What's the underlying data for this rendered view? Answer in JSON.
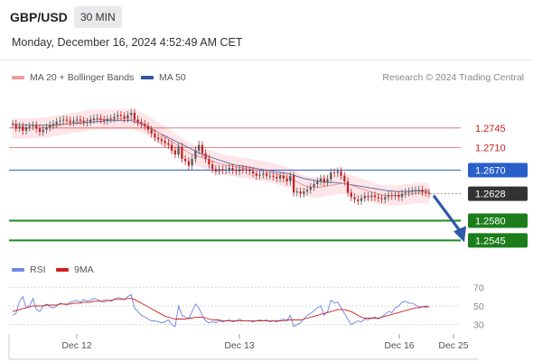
{
  "header": {
    "symbol": "GBP/USD",
    "timeframe": "30 MIN",
    "datetime": "Monday, December 16, 2024 4:52:49 AM CET"
  },
  "legend": {
    "ma20_label": "MA 20 + Bollinger Bands",
    "ma50_label": "MA 50",
    "copyright": "Research © 2024 Trading Central",
    "rsi_label": "RSI",
    "ma9_label": "9MA"
  },
  "colors": {
    "resistance": "#e06060",
    "pivot": "#2f62c4",
    "support": "#1e8a1e",
    "price": "#333333",
    "candle_up": "#555555",
    "candle_down": "#c42020",
    "ma20": "#e79090",
    "ma50": "#5a6aa0",
    "bb_fill": "#fde1e4",
    "rsi": "#6680e0",
    "rsi_ma": "#cc2020",
    "arrow": "#2d5aa8"
  },
  "chart_data": [
    {
      "type": "candlestick",
      "ylim": [
        1.2515,
        1.2825
      ],
      "levels": [
        {
          "value": 1.2745,
          "label": "1.2745",
          "kind": "resistance"
        },
        {
          "value": 1.271,
          "label": "1.2710",
          "kind": "resistance"
        },
        {
          "value": 1.267,
          "label": "1.2670",
          "kind": "pivot"
        },
        {
          "value": 1.2628,
          "label": "1.2628",
          "kind": "price"
        },
        {
          "value": 1.258,
          "label": "1.2580",
          "kind": "support"
        },
        {
          "value": 1.2545,
          "label": "1.2545",
          "kind": "support"
        }
      ],
      "x_ticks": [
        "Dec 12",
        "Dec 13",
        "Dec 16",
        "Dec 25"
      ],
      "close": [
        1.2752,
        1.2745,
        1.2748,
        1.274,
        1.2746,
        1.2748,
        1.275,
        1.2744,
        1.2738,
        1.2742,
        1.2746,
        1.275,
        1.2752,
        1.2756,
        1.2758,
        1.276,
        1.2758,
        1.2755,
        1.2758,
        1.276,
        1.2758,
        1.2755,
        1.2756,
        1.276,
        1.2762,
        1.2763,
        1.276,
        1.2758,
        1.2761,
        1.2762,
        1.2765,
        1.2768,
        1.2766,
        1.2762,
        1.2768,
        1.2772,
        1.276,
        1.2755,
        1.2752,
        1.2748,
        1.2742,
        1.2735,
        1.2728,
        1.2725,
        1.2722,
        1.2718,
        1.2715,
        1.2705,
        1.2698,
        1.2712,
        1.269,
        1.2686,
        1.2678,
        1.269,
        1.2705,
        1.2715,
        1.27,
        1.269,
        1.268,
        1.2672,
        1.2668,
        1.2672,
        1.267,
        1.2671,
        1.2674,
        1.267,
        1.2668,
        1.2672,
        1.2671,
        1.267,
        1.2668,
        1.2664,
        1.266,
        1.2662,
        1.2664,
        1.266,
        1.266,
        1.2658,
        1.2655,
        1.266,
        1.2655,
        1.265,
        1.266,
        1.263,
        1.2632,
        1.2628,
        1.2632,
        1.2635,
        1.264,
        1.2645,
        1.265,
        1.2655,
        1.2648,
        1.2654,
        1.2666,
        1.2665,
        1.2668,
        1.266,
        1.265,
        1.263,
        1.2622,
        1.2618,
        1.2615,
        1.262,
        1.2624,
        1.2622,
        1.2625,
        1.2622,
        1.262,
        1.2618,
        1.2622,
        1.2625,
        1.2624,
        1.2626,
        1.2622,
        1.2628,
        1.263,
        1.2632,
        1.2633,
        1.2634,
        1.2635,
        1.2631,
        1.263,
        1.2628
      ],
      "ma50": [
        1.2752,
        1.2751,
        1.2751,
        1.275,
        1.275,
        1.275,
        1.275,
        1.275,
        1.275,
        1.275,
        1.275,
        1.275,
        1.275,
        1.2751,
        1.2751,
        1.2752,
        1.2752,
        1.2752,
        1.2753,
        1.2753,
        1.2754,
        1.2754,
        1.2755,
        1.2755,
        1.2756,
        1.2756,
        1.2757,
        1.2757,
        1.2758,
        1.2758,
        1.2758,
        1.2758,
        1.2758,
        1.2758,
        1.2758,
        1.2758,
        1.2756,
        1.2754,
        1.2752,
        1.2749,
        1.2746,
        1.2743,
        1.274,
        1.2737,
        1.2734,
        1.2731,
        1.2728,
        1.2725,
        1.2722,
        1.2719,
        1.2716,
        1.2713,
        1.271,
        1.2707,
        1.2704,
        1.2701,
        1.2698,
        1.2696,
        1.2694,
        1.2692,
        1.269,
        1.2688,
        1.2686,
        1.2684,
        1.2682,
        1.268,
        1.2679,
        1.2678,
        1.2677,
        1.2676,
        1.2675,
        1.2674,
        1.2673,
        1.2672,
        1.2671,
        1.267,
        1.2669,
        1.2668,
        1.2667,
        1.2666,
        1.2665,
        1.2664,
        1.2663,
        1.2661,
        1.2659,
        1.2657,
        1.2655,
        1.2654,
        1.2653,
        1.2652,
        1.2651,
        1.265,
        1.2649,
        1.2648,
        1.2648,
        1.2648,
        1.2647,
        1.2647,
        1.2646,
        1.2645,
        1.2644,
        1.2643,
        1.2642,
        1.2641,
        1.264,
        1.2639,
        1.2638,
        1.2637,
        1.2636,
        1.2635,
        1.2634,
        1.2633,
        1.2633,
        1.2632,
        1.2632,
        1.2632,
        1.2632,
        1.2632,
        1.2633,
        1.2633,
        1.2633,
        1.2633,
        1.2633,
        1.2632
      ],
      "ma20": [
        1.2745,
        1.2744,
        1.2744,
        1.2744,
        1.2744,
        1.2744,
        1.2745,
        1.2745,
        1.2745,
        1.2746,
        1.2746,
        1.2747,
        1.2748,
        1.2749,
        1.275,
        1.2751,
        1.2752,
        1.2753,
        1.2754,
        1.2755,
        1.2756,
        1.2757,
        1.2758,
        1.2759,
        1.276,
        1.276,
        1.276,
        1.276,
        1.276,
        1.276,
        1.276,
        1.2761,
        1.2761,
        1.2761,
        1.2761,
        1.276,
        1.2759,
        1.2757,
        1.2755,
        1.2752,
        1.2749,
        1.2745,
        1.2741,
        1.2737,
        1.2733,
        1.2729,
        1.2725,
        1.2721,
        1.2717,
        1.2713,
        1.2709,
        1.2705,
        1.2701,
        1.2698,
        1.2696,
        1.2694,
        1.2692,
        1.269,
        1.2688,
        1.2686,
        1.2684,
        1.2682,
        1.268,
        1.2679,
        1.2678,
        1.2677,
        1.2676,
        1.2675,
        1.2674,
        1.2673,
        1.2672,
        1.2671,
        1.267,
        1.2669,
        1.2668,
        1.2667,
        1.2666,
        1.2665,
        1.2663,
        1.2661,
        1.2659,
        1.2657,
        1.2655,
        1.2652,
        1.2649,
        1.2646,
        1.2643,
        1.2641,
        1.264,
        1.2639,
        1.2639,
        1.264,
        1.2641,
        1.2642,
        1.2643,
        1.2644,
        1.2645,
        1.2646,
        1.2646,
        1.2645,
        1.2643,
        1.2641,
        1.2639,
        1.2637,
        1.2635,
        1.2633,
        1.2631,
        1.2629,
        1.2627,
        1.2626,
        1.2625,
        1.2625,
        1.2625,
        1.2625,
        1.2625,
        1.2626,
        1.2627,
        1.2627,
        1.2628,
        1.2629,
        1.2629,
        1.2629,
        1.2629,
        1.2629
      ]
    },
    {
      "type": "line",
      "ylim": [
        22,
        78
      ],
      "y_ticks": [
        70,
        50,
        30
      ],
      "series": [
        {
          "name": "RSI",
          "values": [
            40,
            42,
            55,
            60,
            48,
            50,
            58,
            46,
            44,
            50,
            52,
            49,
            48,
            50,
            53,
            52,
            51,
            54,
            55,
            56,
            54,
            57,
            55,
            56,
            58,
            57,
            55,
            54,
            56,
            55,
            57,
            59,
            58,
            57,
            60,
            62,
            48,
            44,
            40,
            38,
            36,
            34,
            34,
            33,
            32,
            33,
            35,
            30,
            28,
            50,
            40,
            38,
            36,
            44,
            52,
            48,
            40,
            34,
            32,
            33,
            32,
            34,
            33,
            34,
            35,
            33,
            34,
            36,
            34,
            34,
            34,
            33,
            34,
            35,
            34,
            35,
            33,
            34,
            33,
            35,
            36,
            34,
            40,
            28,
            30,
            32,
            36,
            40,
            42,
            45,
            48,
            50,
            40,
            44,
            56,
            53,
            54,
            48,
            42,
            36,
            30,
            32,
            34,
            33,
            36,
            35,
            37,
            38,
            36,
            38,
            41,
            44,
            43,
            48,
            50,
            54,
            55,
            53,
            53,
            51,
            49,
            49,
            50,
            49
          ]
        },
        {
          "name": "9MA",
          "values": [
            44,
            45,
            46,
            47,
            48,
            49,
            50,
            50,
            50,
            50,
            51,
            51,
            51,
            51,
            52,
            52,
            52,
            52,
            53,
            53,
            53,
            54,
            54,
            54,
            55,
            55,
            55,
            56,
            56,
            56,
            57,
            57,
            57,
            57,
            58,
            58,
            57,
            55,
            53,
            51,
            49,
            47,
            45,
            43,
            41,
            39,
            38,
            37,
            36,
            36,
            36,
            36,
            37,
            37,
            38,
            38,
            38,
            37,
            36,
            35,
            35,
            35,
            34,
            34,
            34,
            34,
            34,
            34,
            34,
            34,
            34,
            34,
            34,
            34,
            34,
            34,
            34,
            34,
            34,
            34,
            34,
            35,
            35,
            35,
            35,
            35,
            36,
            37,
            38,
            39,
            40,
            41,
            42,
            43,
            44,
            45,
            46,
            46,
            46,
            45,
            44,
            42,
            40,
            38,
            37,
            37,
            37,
            37,
            37,
            38,
            39,
            40,
            41,
            42,
            43,
            44,
            45,
            46,
            47,
            48,
            48,
            49,
            49,
            49
          ]
        }
      ]
    }
  ]
}
